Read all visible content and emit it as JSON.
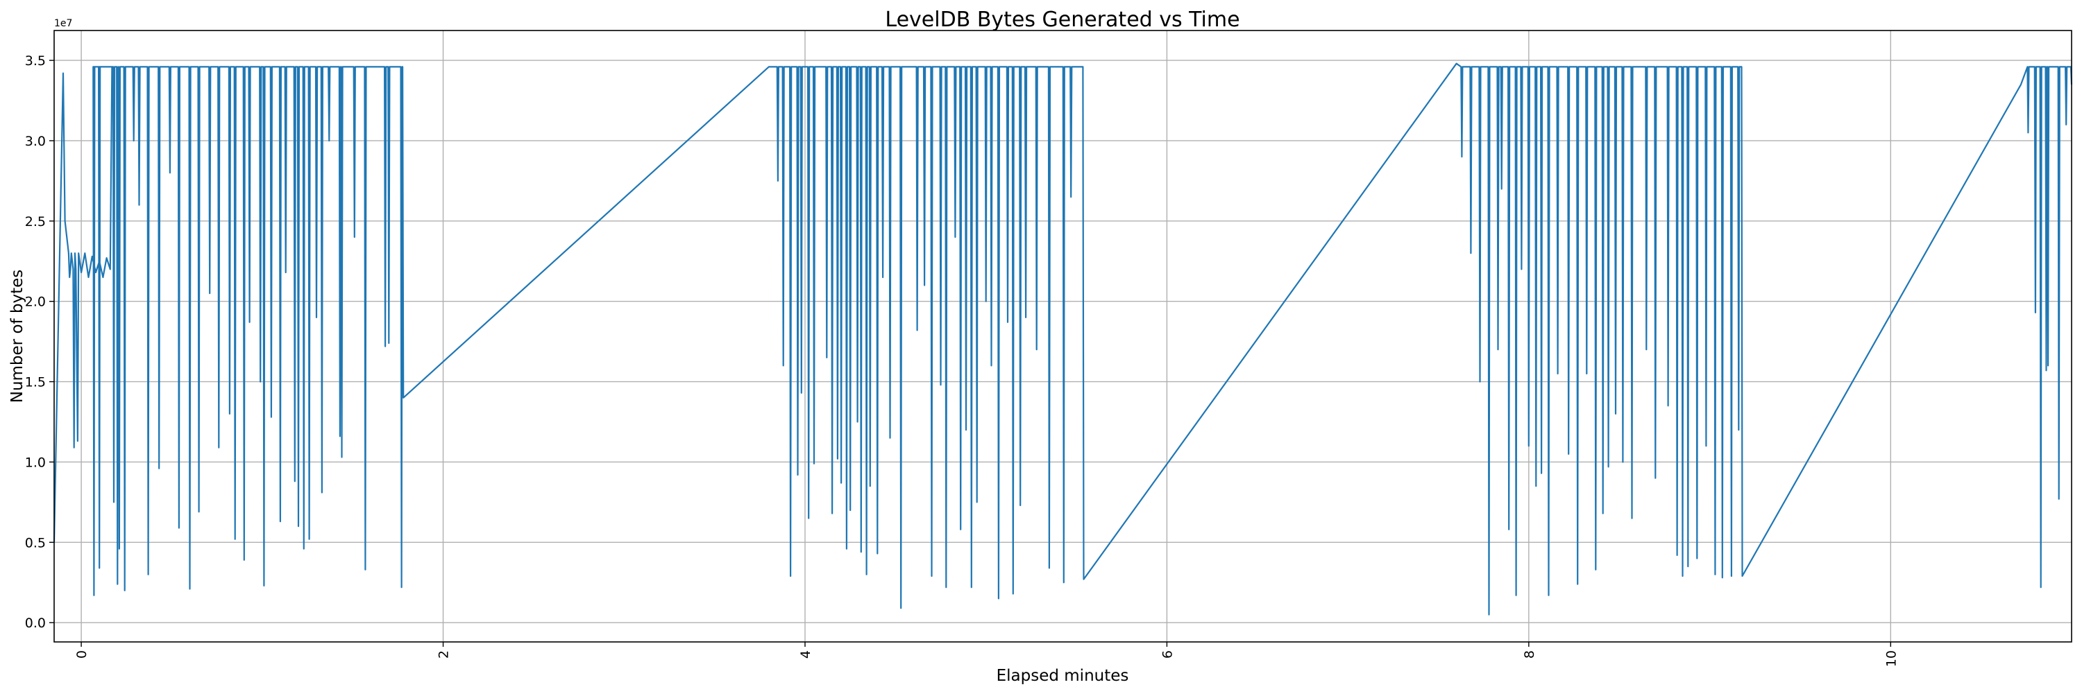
{
  "chart_data": {
    "type": "line",
    "title": "LevelDB Bytes Generated vs Time",
    "xlabel": "Elapsed minutes",
    "ylabel": "Number of bytes",
    "y_offset_label": "1e7",
    "xlim": [
      -0.15,
      11.0
    ],
    "ylim": [
      -0.12,
      3.686
    ],
    "y_scale": 10000000,
    "xticks": [
      0,
      2,
      4,
      6,
      8,
      10
    ],
    "xtick_labels": [
      "0",
      "2",
      "4",
      "6",
      "8",
      "10"
    ],
    "yticks": [
      0,
      0.5,
      1.0,
      1.5,
      2.0,
      2.5,
      3.0,
      3.5
    ],
    "ytick_labels": [
      "0.0",
      "0.5",
      "1.0",
      "1.5",
      "2.0",
      "2.5",
      "3.0",
      "3.5"
    ],
    "grid": true,
    "line_color": "#1f77b4",
    "series": [
      {
        "name": "bytes",
        "baseline": 3.46,
        "prefix": [
          [
            -0.15,
            0.5
          ],
          [
            -0.1,
            3.42
          ],
          [
            -0.09,
            2.5
          ],
          [
            -0.07,
            2.3
          ],
          [
            -0.065,
            2.15
          ],
          [
            -0.06,
            2.2
          ],
          [
            -0.055,
            2.3
          ],
          [
            -0.045,
            2.2
          ],
          [
            -0.04,
            1.09
          ],
          [
            -0.035,
            2.3
          ],
          [
            -0.03,
            2.2
          ],
          [
            -0.02,
            1.13
          ],
          [
            -0.015,
            2.3
          ],
          [
            0.0,
            2.18
          ],
          [
            0.02,
            2.3
          ],
          [
            0.04,
            2.15
          ],
          [
            0.06,
            2.28
          ],
          [
            0.08,
            2.18
          ],
          [
            0.1,
            2.25
          ],
          [
            0.12,
            2.15
          ],
          [
            0.14,
            2.27
          ],
          [
            0.16,
            2.2
          ],
          [
            0.17,
            3.46
          ]
        ],
        "segments": [
          {
            "spikes": [
              [
                0.07,
                0.17
              ],
              [
                0.1,
                0.34
              ],
              [
                0.18,
                0.75
              ],
              [
                0.2,
                0.24
              ],
              [
                0.21,
                0.46
              ],
              [
                0.24,
                0.2
              ],
              [
                0.29,
                3.0
              ],
              [
                0.32,
                2.6
              ],
              [
                0.37,
                0.3
              ],
              [
                0.43,
                0.96
              ],
              [
                0.49,
                2.8
              ],
              [
                0.54,
                0.59
              ],
              [
                0.6,
                0.21
              ],
              [
                0.65,
                0.69
              ],
              [
                0.71,
                2.05
              ],
              [
                0.76,
                1.09
              ],
              [
                0.82,
                1.3
              ],
              [
                0.85,
                0.52
              ],
              [
                0.9,
                0.39
              ],
              [
                0.93,
                1.87
              ],
              [
                0.99,
                1.5
              ],
              [
                1.01,
                0.23
              ],
              [
                1.05,
                1.28
              ],
              [
                1.1,
                0.63
              ],
              [
                1.13,
                2.18
              ],
              [
                1.18,
                0.88
              ],
              [
                1.2,
                0.6
              ],
              [
                1.23,
                0.46
              ],
              [
                1.26,
                0.52
              ],
              [
                1.3,
                1.9
              ],
              [
                1.33,
                0.81
              ],
              [
                1.37,
                3.0
              ],
              [
                1.43,
                1.16
              ],
              [
                1.44,
                1.03
              ],
              [
                1.51,
                2.4
              ],
              [
                1.57,
                0.33
              ],
              [
                1.68,
                1.72
              ],
              [
                1.7,
                1.74
              ],
              [
                1.77,
                0.22
              ]
            ],
            "end": [
              1.78,
              1.4
            ]
          },
          {
            "spikes": [
              [
                3.85,
                2.75
              ],
              [
                3.88,
                1.6
              ],
              [
                3.92,
                0.29
              ],
              [
                3.96,
                0.92
              ],
              [
                3.98,
                1.43
              ],
              [
                4.02,
                0.65
              ],
              [
                4.05,
                0.99
              ],
              [
                4.12,
                1.65
              ],
              [
                4.15,
                0.68
              ],
              [
                4.18,
                1.02
              ],
              [
                4.2,
                0.87
              ],
              [
                4.23,
                0.46
              ],
              [
                4.25,
                0.7
              ],
              [
                4.29,
                1.25
              ],
              [
                4.31,
                0.44
              ],
              [
                4.34,
                0.3
              ],
              [
                4.36,
                0.85
              ],
              [
                4.4,
                0.43
              ],
              [
                4.43,
                2.15
              ],
              [
                4.47,
                1.15
              ],
              [
                4.53,
                0.09
              ],
              [
                4.62,
                1.82
              ],
              [
                4.66,
                2.1
              ],
              [
                4.7,
                0.29
              ],
              [
                4.75,
                1.48
              ],
              [
                4.78,
                0.22
              ],
              [
                4.83,
                2.4
              ],
              [
                4.86,
                0.58
              ],
              [
                4.89,
                1.2
              ],
              [
                4.92,
                0.22
              ],
              [
                4.95,
                0.75
              ],
              [
                5.0,
                2.0
              ],
              [
                5.03,
                1.6
              ],
              [
                5.07,
                0.15
              ],
              [
                5.12,
                1.87
              ],
              [
                5.15,
                0.18
              ],
              [
                5.19,
                0.73
              ],
              [
                5.22,
                1.9
              ],
              [
                5.28,
                1.7
              ],
              [
                5.35,
                0.34
              ],
              [
                5.43,
                0.25
              ],
              [
                5.47,
                2.65
              ]
            ],
            "end": [
              5.54,
              0.27
            ]
          },
          {
            "spikes": [
              [
                7.63,
                2.9
              ],
              [
                7.68,
                2.3
              ],
              [
                7.73,
                1.5
              ],
              [
                7.78,
                0.05
              ],
              [
                7.83,
                1.7
              ],
              [
                7.85,
                2.7
              ],
              [
                7.89,
                0.58
              ],
              [
                7.93,
                0.17
              ],
              [
                7.96,
                2.2
              ],
              [
                8.0,
                1.1
              ],
              [
                8.04,
                0.85
              ],
              [
                8.07,
                0.93
              ],
              [
                8.11,
                0.17
              ],
              [
                8.16,
                1.55
              ],
              [
                8.22,
                1.05
              ],
              [
                8.27,
                0.24
              ],
              [
                8.32,
                1.55
              ],
              [
                8.37,
                0.33
              ],
              [
                8.41,
                0.68
              ],
              [
                8.44,
                0.97
              ],
              [
                8.48,
                1.3
              ],
              [
                8.52,
                1.0
              ],
              [
                8.57,
                0.65
              ],
              [
                8.65,
                1.7
              ],
              [
                8.7,
                0.9
              ],
              [
                8.77,
                1.35
              ],
              [
                8.82,
                0.42
              ],
              [
                8.85,
                0.29
              ],
              [
                8.88,
                0.35
              ],
              [
                8.93,
                0.4
              ],
              [
                8.98,
                1.1
              ],
              [
                9.03,
                0.3
              ],
              [
                9.07,
                0.28
              ],
              [
                9.12,
                0.29
              ],
              [
                9.16,
                1.2
              ]
            ],
            "end": [
              9.18,
              0.29
            ]
          },
          {
            "start": [
              10.72,
              3.35
            ],
            "spikes": [
              [
                10.76,
                3.05
              ],
              [
                10.8,
                1.93
              ],
              [
                10.83,
                0.22
              ],
              [
                10.86,
                1.57
              ],
              [
                10.87,
                1.6
              ],
              [
                10.93,
                0.77
              ],
              [
                10.97,
                3.1
              ]
            ],
            "end": [
              11.0,
              3.35
            ]
          }
        ],
        "ramp_starts": [
          [
            3.8,
            3.46
          ],
          [
            7.6,
            3.48
          ]
        ]
      }
    ]
  }
}
